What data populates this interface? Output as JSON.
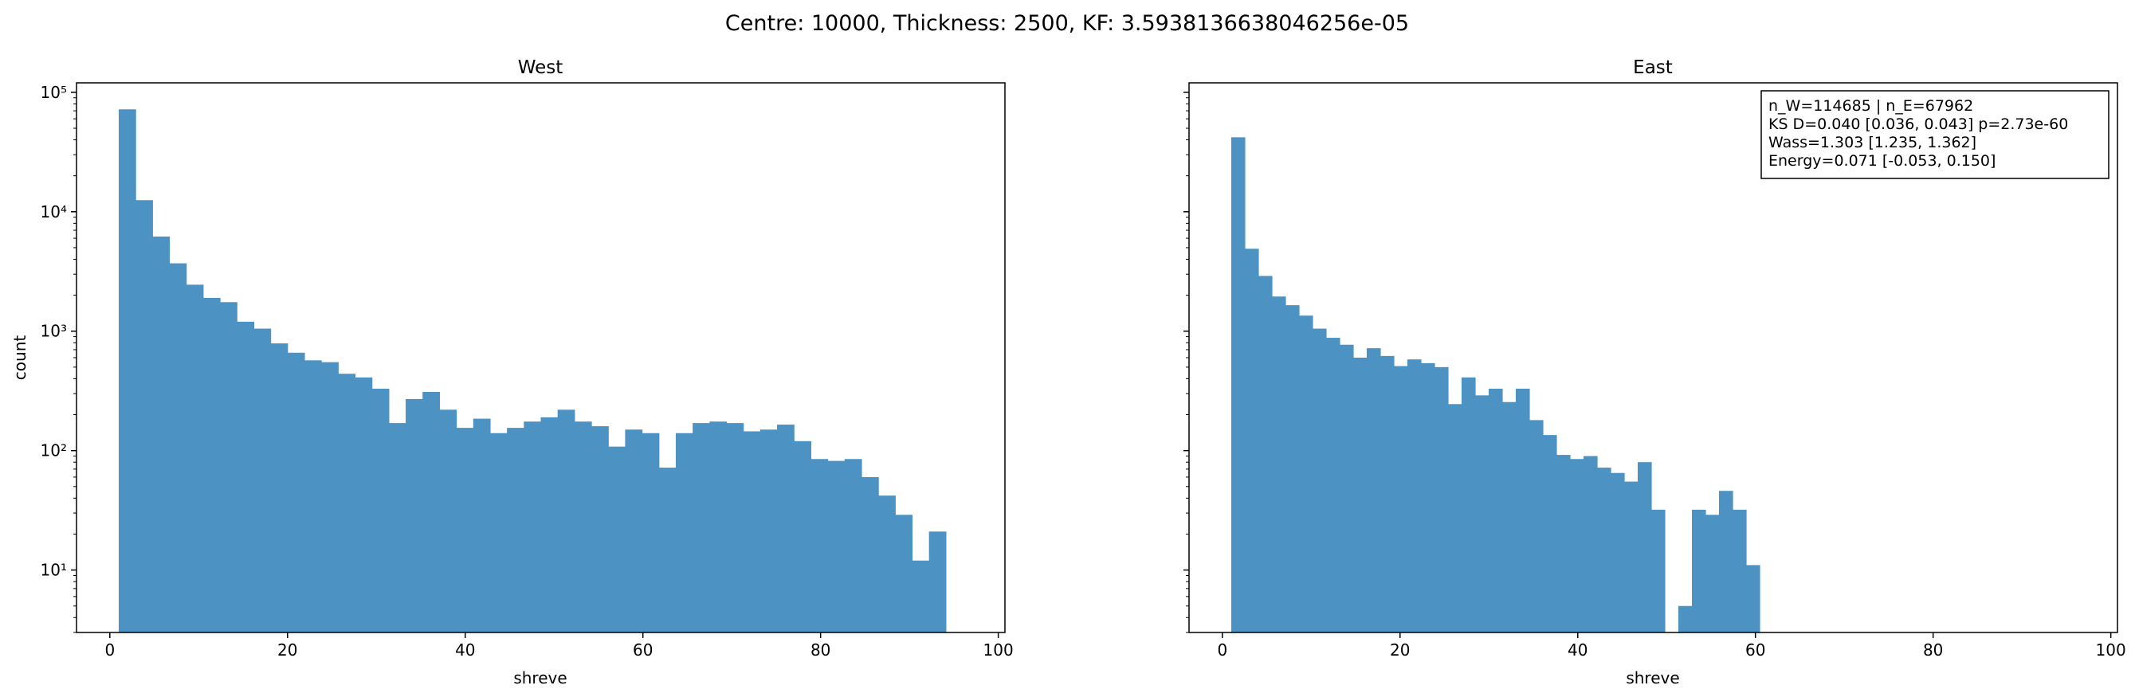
{
  "figure": {
    "suptitle": "Centre: 10000, Thickness: 2500, KF: 3.5938136638046256e-05"
  },
  "chart_data": [
    {
      "type": "histogram",
      "title": "West",
      "xlabel": "shreve",
      "ylabel": "count",
      "xlim": [
        -3.75,
        100.75
      ],
      "ylim": [
        3,
        120000
      ],
      "yscale": "log",
      "xticks": [
        0,
        20,
        40,
        60,
        80,
        100
      ],
      "xtick_labels": [
        "0",
        "20",
        "40",
        "60",
        "80",
        "100"
      ],
      "yticks": [
        10,
        100,
        1000,
        10000,
        100000
      ],
      "ytick_labels": [
        "10¹",
        "10²",
        "10³",
        "10⁴",
        "10⁵"
      ],
      "bin_start": 1,
      "bin_width": 1.9,
      "bar_color": "#4c92c3",
      "counts": [
        72000,
        12500,
        6200,
        3700,
        2450,
        1900,
        1750,
        1200,
        1050,
        790,
        660,
        570,
        550,
        440,
        410,
        330,
        170,
        270,
        310,
        220,
        155,
        185,
        140,
        155,
        175,
        190,
        220,
        175,
        160,
        108,
        150,
        140,
        72,
        140,
        170,
        175,
        170,
        145,
        150,
        165,
        120,
        85,
        82,
        85,
        60,
        42,
        29,
        12,
        21
      ]
    },
    {
      "type": "histogram",
      "title": "East",
      "xlabel": "shreve",
      "ylabel": "",
      "xlim": [
        -3.75,
        100.75
      ],
      "ylim": [
        3,
        120000
      ],
      "yscale": "log",
      "xticks": [
        0,
        20,
        40,
        60,
        80,
        100
      ],
      "xtick_labels": [
        "0",
        "20",
        "40",
        "60",
        "80",
        "100"
      ],
      "bin_start": 1,
      "bin_width": 1.525,
      "bar_color": "#4c92c3",
      "counts": [
        42000,
        4900,
        2900,
        1950,
        1650,
        1350,
        1050,
        880,
        770,
        600,
        720,
        620,
        510,
        580,
        540,
        500,
        245,
        410,
        290,
        330,
        255,
        330,
        180,
        135,
        92,
        85,
        90,
        72,
        65,
        55,
        80,
        32,
        0,
        5,
        32,
        29,
        46,
        32,
        11
      ],
      "stats_box": {
        "line1": "n_W=114685 | n_E=67962",
        "line2": "KS D=0.040 [0.036, 0.043]  p=2.73e-60",
        "line3": "Wass=1.303 [1.235, 1.362]",
        "line4": "Energy=0.071 [-0.053, 0.150]"
      }
    }
  ]
}
